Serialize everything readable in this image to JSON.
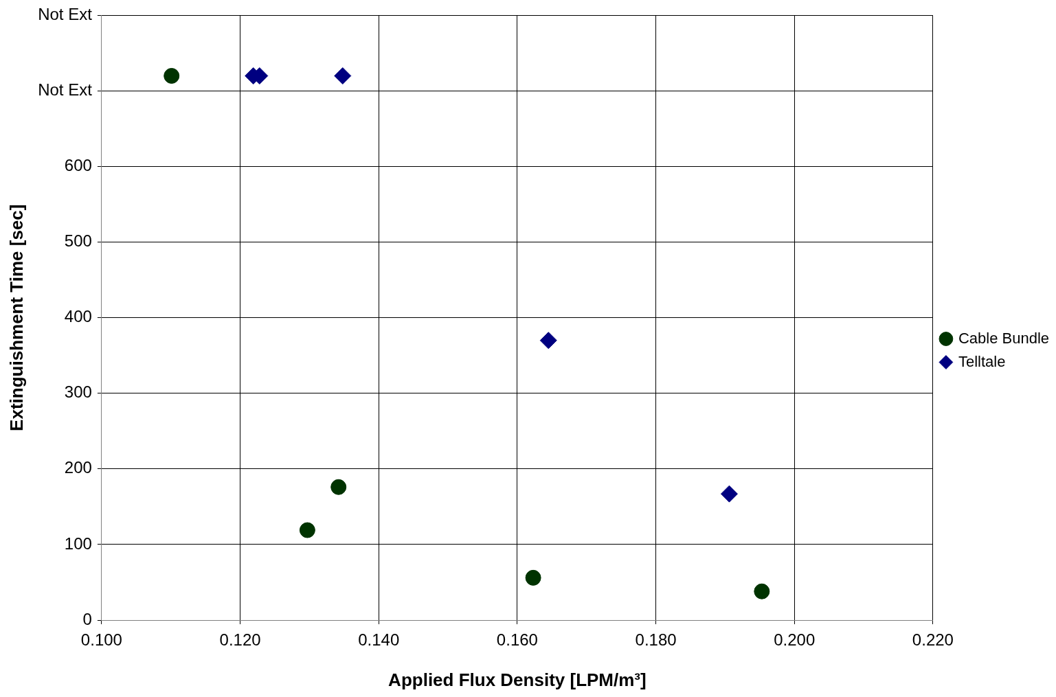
{
  "chart_data": {
    "type": "scatter",
    "xlabel": "Applied Flux Density [LPM/m³]",
    "ylabel": "Extinguishment Time [sec]",
    "xlim": [
      0.1,
      0.22
    ],
    "xticks": [
      {
        "value": 0.1,
        "label": "0.100"
      },
      {
        "value": 0.12,
        "label": "0.120"
      },
      {
        "value": 0.14,
        "label": "0.140"
      },
      {
        "value": 0.16,
        "label": "0.160"
      },
      {
        "value": 0.18,
        "label": "0.180"
      },
      {
        "value": 0.2,
        "label": "0.200"
      },
      {
        "value": 0.22,
        "label": "0.220"
      }
    ],
    "ylim": [
      0,
      800
    ],
    "yticks": [
      0,
      100,
      200,
      300,
      400,
      500,
      600,
      {
        "value": 700,
        "label": "Not Ext"
      },
      {
        "value": 800,
        "label": "Not Ext"
      }
    ],
    "grid": true,
    "legend": "right",
    "series": [
      {
        "name": "Cable Bundle",
        "color": "#003300",
        "marker": "circle",
        "x": [
          0.1101,
          0.1297,
          0.1342,
          0.1623,
          0.1953
        ],
        "values": [
          720,
          119,
          176,
          56,
          38
        ]
      },
      {
        "name": "Telltale",
        "color": "#000080",
        "marker": "diamond",
        "x": [
          0.1219,
          0.1228,
          0.1348,
          0.1645,
          0.1906
        ],
        "values": [
          720,
          720,
          720,
          370,
          167
        ]
      }
    ]
  }
}
